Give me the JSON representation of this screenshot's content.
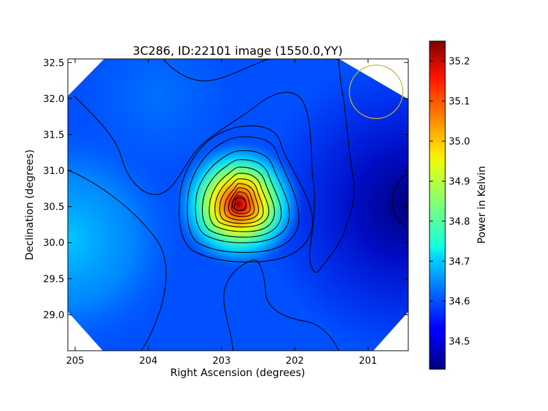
{
  "chart_data": {
    "type": "heatmap",
    "title": "3C286, ID:22101 image (1550.0,YY)",
    "xlabel": "Right Ascension (degrees)",
    "ylabel": "Declination (degrees)",
    "colorbar_label": "Power in Kelvin",
    "xlim": [
      205.1,
      200.45
    ],
    "ylim": [
      28.5,
      32.55
    ],
    "x_ticks": [
      205,
      204,
      203,
      202,
      201
    ],
    "y_ticks": [
      32.5,
      32.0,
      31.5,
      31.0,
      30.5,
      30.0,
      29.5,
      29.0
    ],
    "colorbar_range": [
      34.43,
      35.25
    ],
    "colorbar_ticks": [
      34.5,
      34.6,
      34.7,
      34.8,
      34.9,
      35.0,
      35.1,
      35.2
    ],
    "colormap": "jet",
    "peak": {
      "ra": 202.8,
      "dec": 30.5,
      "value": 35.23
    },
    "contours": {
      "count": 14,
      "color": "#000000"
    },
    "beam": {
      "ra": 200.93,
      "dec": 32.06,
      "radius_deg": 0.36,
      "color": "#c8b432"
    },
    "grid": false
  }
}
